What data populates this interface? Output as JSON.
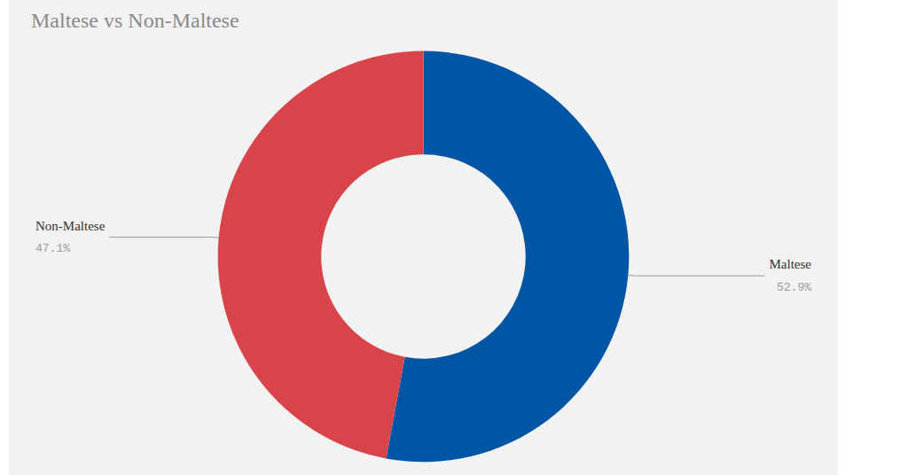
{
  "chart_data": {
    "type": "pie",
    "title": "Maltese vs Non-Maltese",
    "categories": [
      "Maltese",
      "Non-Maltese"
    ],
    "values": [
      52.9,
      47.1
    ],
    "value_labels": [
      "52.9%",
      "47.1%"
    ],
    "colors": [
      "#0055a4",
      "#d9444b"
    ],
    "data_labels": true
  }
}
